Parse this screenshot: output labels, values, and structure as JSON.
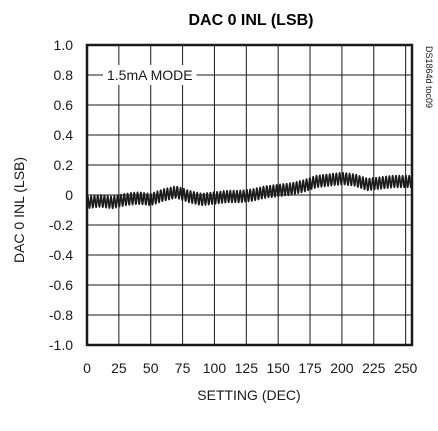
{
  "chart_data": {
    "type": "line",
    "title": "DAC 0 INL (LSB)",
    "xlabel": "SETTING (DEC)",
    "ylabel": "DAC 0 INL (LSB)",
    "xlim": [
      0,
      255
    ],
    "ylim": [
      -1.0,
      1.0
    ],
    "x_ticks": [
      "0",
      "25",
      "50",
      "75",
      "100",
      "125",
      "150",
      "175",
      "200",
      "225",
      "250"
    ],
    "y_ticks": [
      "1.0",
      "0.8",
      "0.6",
      "0.4",
      "0.2",
      "0",
      "-0.2",
      "-0.4",
      "-0.6",
      "-0.8",
      "-1.0"
    ],
    "grid": true,
    "annotation": "1.5mA MODE",
    "doc_id": "DS1864d toc09",
    "series_color": "#1a1a1a",
    "series": [
      {
        "x": [
          0,
          10,
          20,
          30,
          40,
          50,
          60,
          70,
          80,
          90,
          100,
          110,
          120,
          130,
          140,
          150,
          160,
          170,
          180,
          190,
          200,
          210,
          220,
          230,
          240,
          255
        ],
        "y_center": [
          -0.05,
          -0.04,
          -0.05,
          -0.03,
          -0.02,
          -0.03,
          0.0,
          0.02,
          -0.01,
          -0.03,
          -0.02,
          -0.01,
          -0.01,
          0.0,
          0.02,
          0.03,
          0.04,
          0.06,
          0.09,
          0.1,
          0.11,
          0.1,
          0.07,
          0.08,
          0.09,
          0.09
        ],
        "oscillation_amplitude": 0.04
      }
    ]
  }
}
